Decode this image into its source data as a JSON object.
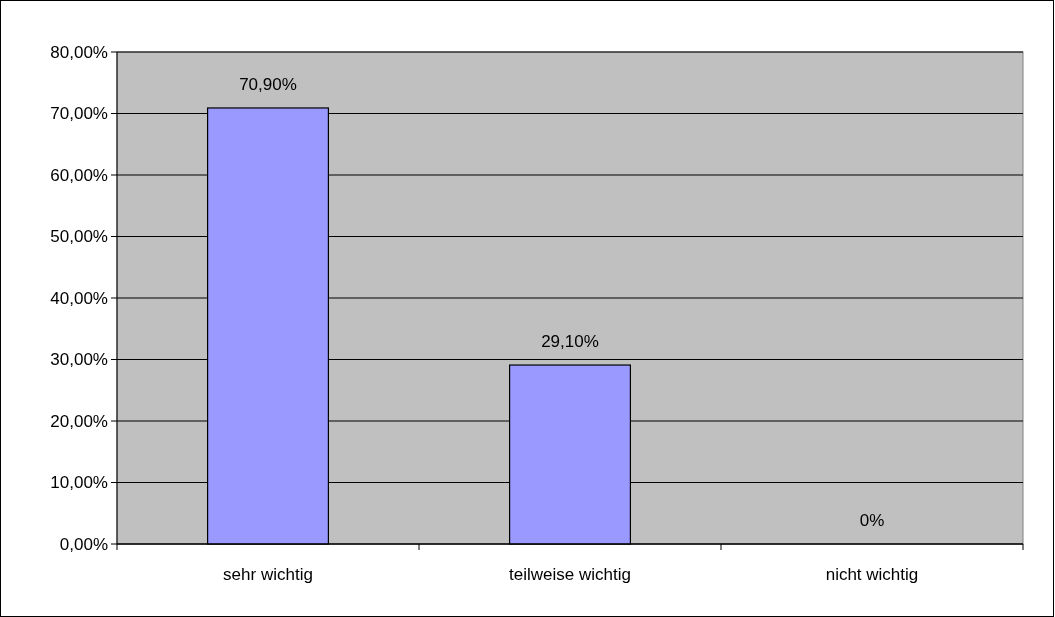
{
  "chart_data": {
    "type": "bar",
    "categories": [
      "sehr wichtig",
      "teilweise wichtig",
      "nicht wichtig"
    ],
    "values": [
      70.9,
      29.1,
      0
    ],
    "value_labels": [
      "70,90%",
      "29,10%",
      "0%"
    ],
    "color": "#9999ff",
    "ylim": [
      0,
      80
    ],
    "yticks": [
      {
        "value": 0,
        "label": "0,00%"
      },
      {
        "value": 10,
        "label": "10,00%"
      },
      {
        "value": 20,
        "label": "20,00%"
      },
      {
        "value": 30,
        "label": "30,00%"
      },
      {
        "value": 40,
        "label": "40,00%"
      },
      {
        "value": 50,
        "label": "50,00%"
      },
      {
        "value": 60,
        "label": "60,00%"
      },
      {
        "value": 70,
        "label": "70,00%"
      },
      {
        "value": 80,
        "label": "80,00%"
      }
    ],
    "grid": "y"
  }
}
